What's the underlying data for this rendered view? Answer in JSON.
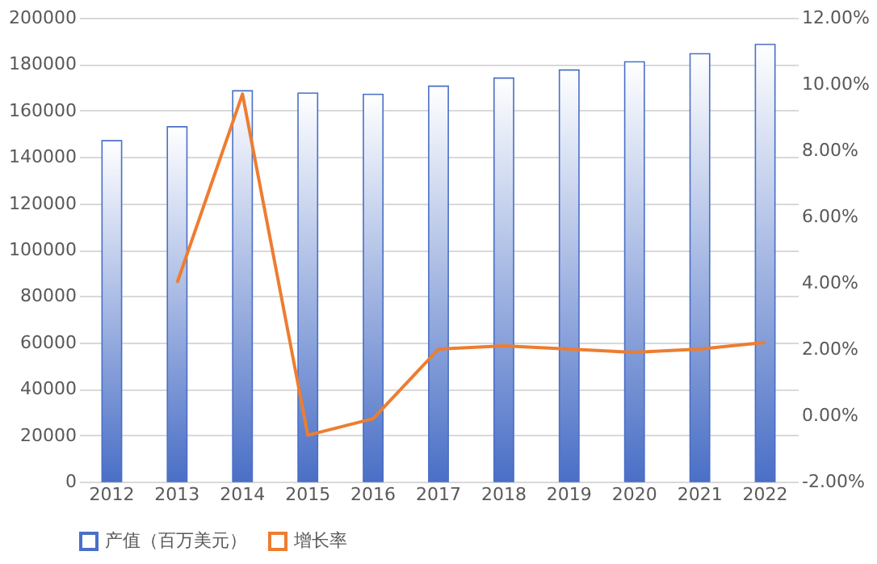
{
  "chart_data": {
    "type": "bar",
    "categories": [
      "2012",
      "2013",
      "2014",
      "2015",
      "2016",
      "2017",
      "2018",
      "2019",
      "2020",
      "2021",
      "2022"
    ],
    "series": [
      {
        "name": "产值（百万美元）",
        "color": "#4a6fc6",
        "values": [
          147000,
          153000,
          168500,
          167500,
          167000,
          170500,
          174000,
          177500,
          181000,
          184500,
          188500
        ]
      },
      {
        "name": "增长率",
        "type": "line",
        "axis": "y2",
        "color": "#ed7d31",
        "values": [
          null,
          4.0,
          9.7,
          -0.6,
          -0.1,
          2.0,
          2.1,
          2.0,
          1.9,
          2.0,
          2.2
        ]
      }
    ],
    "ylim": [
      0,
      200000
    ],
    "yticks": [
      0,
      20000,
      40000,
      60000,
      80000,
      100000,
      120000,
      140000,
      160000,
      180000,
      200000
    ],
    "y2lim": [
      -2,
      12
    ],
    "y2ticks": [
      {
        "value": -2,
        "label": "-2.00%"
      },
      {
        "value": 0,
        "label": "0.00%"
      },
      {
        "value": 2,
        "label": "2.00%"
      },
      {
        "value": 4,
        "label": "4.00%"
      },
      {
        "value": 6,
        "label": "6.00%"
      },
      {
        "value": 8,
        "label": "8.00%"
      },
      {
        "value": 10,
        "label": "10.00%"
      },
      {
        "value": 12,
        "label": "12.00%"
      }
    ],
    "grid": "y",
    "legend": "bottom"
  }
}
